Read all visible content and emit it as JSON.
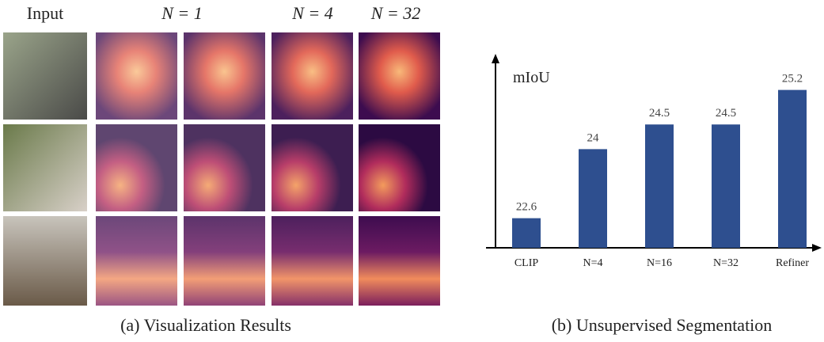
{
  "panel_a": {
    "column_headers": [
      "Input",
      "N = 1",
      "N = 4",
      "N = 32"
    ],
    "caption": "(a) Visualization Results"
  },
  "chart_data": {
    "type": "bar",
    "ylabel": "mIoU",
    "caption": "(b) Unsupervised Segmentation",
    "categories": [
      "CLIP",
      "N=4",
      "N=16",
      "N=32",
      "Refiner"
    ],
    "values": [
      22.6,
      24,
      24.5,
      24.5,
      25.2
    ],
    "color": "#2e4f8f",
    "ylim": [
      22,
      25.9
    ],
    "grid": false
  }
}
